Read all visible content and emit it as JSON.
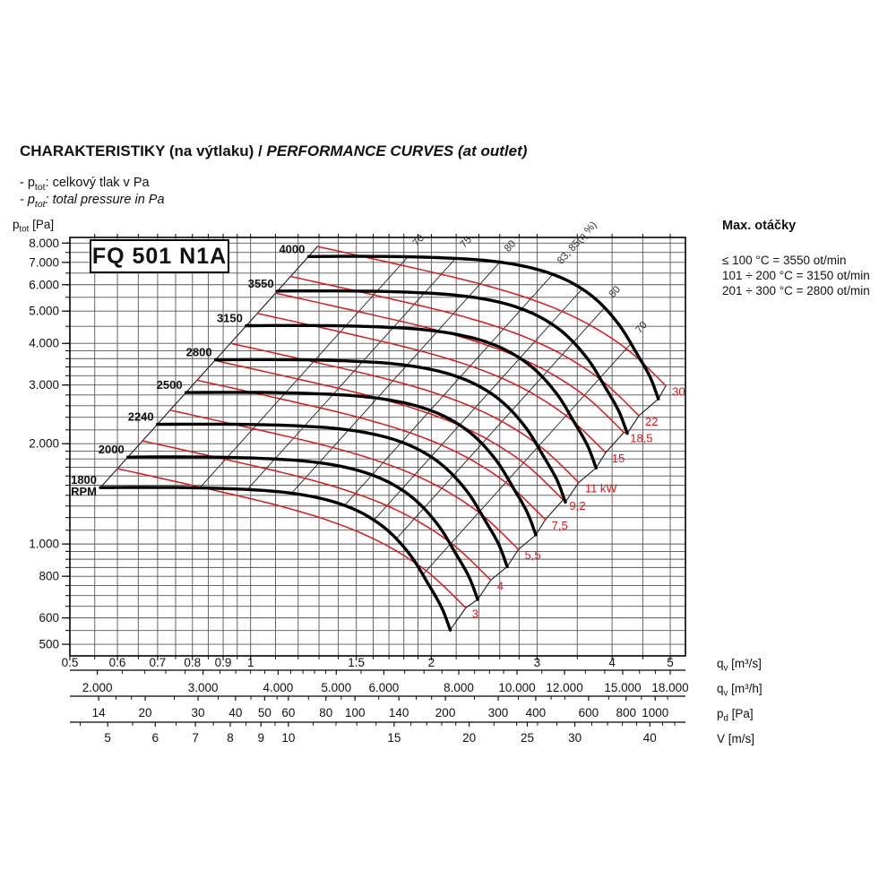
{
  "page": {
    "title_cz": "CHARAKTERISTIKY (na výtlaku) / ",
    "title_en": "PERFORMANCE CURVES (at outlet)",
    "legend": [
      {
        "prefix": "- p",
        "sub": "tot",
        "rest": ": celkový tlak v Pa"
      },
      {
        "prefix": "- p",
        "sub": "tot",
        "rest": ": total pressure in Pa"
      }
    ],
    "model": "FQ 501 N1A",
    "max_speed": {
      "heading": "Max. otáčky",
      "lines": [
        "≤ 100 °C = 3550 ot/min",
        "101 ÷ 200 °C = 3150 ot/min",
        "201 ÷ 300 °C = 2800 ot/min"
      ]
    },
    "y_axis_title": {
      "main": "p",
      "sub": "tot",
      "unit": " [Pa]"
    }
  },
  "chart_data": {
    "type": "line",
    "x_scale_type": "log",
    "y_scale_type": "log",
    "x_range": [
      0.5,
      5.3
    ],
    "y_range": [
      461.5,
      8318
    ],
    "colors": {
      "curve_black": "#000000",
      "power_red": "#e01616",
      "grid": "#555555",
      "eff_line": "#222222",
      "text": "#111111"
    },
    "y_ticks": [
      {
        "text": "8.000",
        "value": 8000
      },
      {
        "text": "7.000",
        "value": 7000
      },
      {
        "text": "6.000",
        "value": 6000
      },
      {
        "text": "5.000",
        "value": 5000
      },
      {
        "text": "4.000",
        "value": 4000
      },
      {
        "text": "3.000",
        "value": 3000
      },
      {
        "text": "2.000",
        "value": 2000
      },
      {
        "text": "1.000",
        "value": 1000
      },
      {
        "text": "800",
        "value": 800
      },
      {
        "text": "600",
        "value": 600
      },
      {
        "text": "500",
        "value": 500
      }
    ],
    "grid": {
      "x_lines": [
        0.55,
        0.6,
        0.65,
        0.7,
        0.75,
        0.8,
        0.85,
        0.9,
        0.95,
        1.0,
        1.1,
        1.2,
        1.3,
        1.4,
        1.5,
        1.6,
        1.7,
        1.8,
        1.9,
        2.0,
        2.2,
        2.4,
        2.6,
        2.8,
        3.0,
        3.5,
        4.0,
        4.5,
        5.0
      ],
      "y_lines": [
        500,
        550,
        600,
        650,
        700,
        750,
        800,
        850,
        900,
        950,
        1000,
        1100,
        1200,
        1300,
        1400,
        1500,
        1600,
        1700,
        1800,
        1900,
        2000,
        2200,
        2400,
        2600,
        2800,
        3000,
        3200,
        3400,
        3600,
        3800,
        4000,
        4500,
        5000,
        5500,
        6000,
        6500,
        7000,
        7500,
        8000
      ]
    },
    "conv": {
      "m3h_factor": 3600,
      "flow_area": 0.1156,
      "pd_coeff": 0.6
    },
    "x_scales": [
      {
        "caption": {
          "main": "q",
          "sub": "v",
          "unit": " [m³/s]"
        },
        "type": "m3s",
        "labels_y": 744,
        "tick_line_y": 732,
        "draw_line": false,
        "labels": [
          {
            "text": "0.5",
            "value": 0.5
          },
          {
            "text": "0.6",
            "value": 0.6
          },
          {
            "text": "0.7",
            "value": 0.7
          },
          {
            "text": "0.8",
            "value": 0.8
          },
          {
            "text": "0.9",
            "value": 0.9
          },
          {
            "text": "1",
            "value": 1
          },
          {
            "text": "1.5",
            "value": 1.5
          },
          {
            "text": "2",
            "value": 2
          },
          {
            "text": "3",
            "value": 3
          },
          {
            "text": "4",
            "value": 4
          },
          {
            "text": "5",
            "value": 5
          }
        ],
        "ticks": [
          0.55,
          0.65,
          0.75,
          0.85,
          0.95,
          1.1,
          1.2,
          1.3,
          1.4,
          1.6,
          1.7,
          1.8,
          1.9,
          2.2,
          2.4,
          2.6,
          2.8,
          3.5,
          4.5
        ]
      },
      {
        "caption": {
          "main": "q",
          "sub": "v",
          "unit": " [m³/h]"
        },
        "type": "m3h",
        "labels_y": 772,
        "tick_line_y": 748,
        "draw_line": true,
        "labels": [
          {
            "text": "2.000",
            "value": 2000
          },
          {
            "text": "3.000",
            "value": 3000
          },
          {
            "text": "4.000",
            "value": 4000
          },
          {
            "text": "5.000",
            "value": 5000
          },
          {
            "text": "6.000",
            "value": 6000
          },
          {
            "text": "8.000",
            "value": 8000
          },
          {
            "text": "10.000",
            "value": 10000
          },
          {
            "text": "12.000",
            "value": 12000
          },
          {
            "text": "15.000",
            "value": 15000
          },
          {
            "text": "18.000",
            "value": 18000
          }
        ],
        "ticks": [
          2200,
          2400,
          2600,
          2800,
          3200,
          3400,
          3600,
          3800,
          4200,
          4400,
          4600,
          4800,
          5500,
          6500,
          7000,
          7500,
          8500,
          9000,
          9500,
          11000,
          13000,
          14000,
          16000,
          17000
        ]
      },
      {
        "caption": {
          "main": "p",
          "sub": "d",
          "unit": " [Pa]"
        },
        "type": "pd",
        "labels_y": 800,
        "tick_line_y": 777,
        "draw_line": true,
        "labels": [
          {
            "text": "14",
            "value": 14
          },
          {
            "text": "20",
            "value": 20
          },
          {
            "text": "30",
            "value": 30
          },
          {
            "text": "40",
            "value": 40
          },
          {
            "text": "50",
            "value": 50
          },
          {
            "text": "60",
            "value": 60
          },
          {
            "text": "80",
            "value": 80
          },
          {
            "text": "100",
            "value": 100
          },
          {
            "text": "140",
            "value": 140
          },
          {
            "text": "200",
            "value": 200
          },
          {
            "text": "300",
            "value": 300
          },
          {
            "text": "400",
            "value": 400
          },
          {
            "text": "600",
            "value": 600
          },
          {
            "text": "800",
            "value": 800
          },
          {
            "text": "1000",
            "value": 1000
          }
        ],
        "ticks": [
          16,
          18,
          25,
          35,
          45,
          55,
          70,
          90,
          120,
          160,
          180,
          250,
          350,
          450,
          500,
          700,
          900,
          1100
        ]
      },
      {
        "caption": {
          "main": "V",
          "sub": "",
          "unit": " [m/s]"
        },
        "type": "v",
        "labels_y": 828,
        "tick_line_y": 806,
        "draw_line": true,
        "labels": [
          {
            "text": "5",
            "value": 5
          },
          {
            "text": "6",
            "value": 6
          },
          {
            "text": "7",
            "value": 7
          },
          {
            "text": "8",
            "value": 8
          },
          {
            "text": "9",
            "value": 9
          },
          {
            "text": "10",
            "value": 10
          },
          {
            "text": "15",
            "value": 15
          },
          {
            "text": "20",
            "value": 20
          },
          {
            "text": "25",
            "value": 25
          },
          {
            "text": "30",
            "value": 30
          },
          {
            "text": "40",
            "value": 40
          }
        ],
        "ticks": [
          4.5,
          5.5,
          6.5,
          7.5,
          8.5,
          9.5,
          11,
          12,
          13,
          14,
          16,
          17,
          18,
          19,
          22,
          24,
          26,
          28,
          32,
          34,
          36,
          38,
          42,
          44
        ]
      }
    ],
    "base_rpm": 1800,
    "rpm_base_curve": [
      [
        0.562,
        1476
      ],
      [
        0.65,
        1478
      ],
      [
        0.8,
        1475
      ],
      [
        0.95,
        1462
      ],
      [
        1.1,
        1438
      ],
      [
        1.25,
        1394
      ],
      [
        1.4,
        1325
      ],
      [
        1.55,
        1225
      ],
      [
        1.7,
        1090
      ],
      [
        1.85,
        920
      ],
      [
        1.975,
        760
      ],
      [
        2.08,
        645
      ],
      [
        2.15,
        552
      ]
    ],
    "rpm_curves": [
      {
        "rpm": 1800,
        "label": "1800",
        "sublabel": "RPM"
      },
      {
        "rpm": 2000,
        "label": "2000"
      },
      {
        "rpm": 2240,
        "label": "2240"
      },
      {
        "rpm": 2500,
        "label": "2500"
      },
      {
        "rpm": 2800,
        "label": "2800"
      },
      {
        "rpm": 3150,
        "label": "3150"
      },
      {
        "rpm": 3550,
        "label": "3550"
      },
      {
        "rpm": 4000,
        "label": "4000"
      }
    ],
    "base_kw": 3,
    "power_base_curve": [
      [
        0.6,
        1683
      ],
      [
        0.686,
        1596
      ],
      [
        0.784,
        1512
      ],
      [
        0.896,
        1432
      ],
      [
        1.024,
        1354
      ],
      [
        1.17,
        1272
      ],
      [
        1.337,
        1182
      ],
      [
        1.528,
        1078
      ],
      [
        1.747,
        954
      ],
      [
        1.997,
        809
      ],
      [
        2.282,
        643
      ]
    ],
    "power_curves": [
      {
        "kw": 3,
        "label": "3"
      },
      {
        "kw": 4,
        "label": "4"
      },
      {
        "kw": 5.5,
        "label": "5,5"
      },
      {
        "kw": 7.5,
        "label": "7,5"
      },
      {
        "kw": 9.2,
        "label": "9,2"
      },
      {
        "kw": 11,
        "label": "11 kW"
      },
      {
        "kw": 15,
        "label": "15"
      },
      {
        "kw": 18.5,
        "label": "18,5"
      },
      {
        "kw": 22,
        "label": "22"
      },
      {
        "kw": 30,
        "label": "30"
      }
    ],
    "efficiency_lines": [
      {
        "label": "70",
        "k": 2176
      },
      {
        "label": "75",
        "k": 1494
      },
      {
        "label": "80",
        "k": 1037
      },
      {
        "label": "83, 85(η %)",
        "k": 635
      },
      {
        "label": "",
        "k": 458
      },
      {
        "label": "80",
        "k": 339
      },
      {
        "label": "70",
        "k": 216
      }
    ]
  }
}
